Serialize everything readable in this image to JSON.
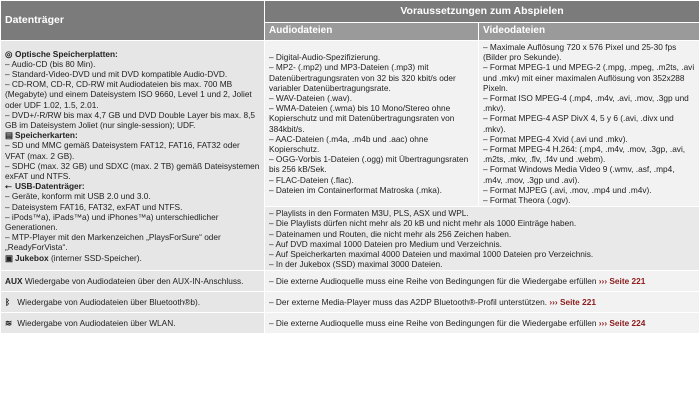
{
  "headers": {
    "col1": "Datenträger",
    "col23": "Voraussetzungen zum Abspielen",
    "audio": "Audiodateien",
    "video": "Videodateien"
  },
  "media": {
    "optical_title": "Optische Speicherplatten:",
    "optical_items": [
      "– Audio-CD (bis 80 Min).",
      "– Standard-Video-DVD und mit DVD kompatible Audio-DVD.",
      "– CD-ROM, CD-R, CD-RW mit Audiodateien bis max. 700 MB (Megabyte) und einem Dateisystem ISO 9660, Level 1 und 2, Joliet oder UDF 1.02, 1.5, 2.01.",
      "– DVD+/-R/RW bis max 4,7 GB und DVD Double Layer bis max. 8,5 GB im Dateisystem Joliet (nur single-session); UDF."
    ],
    "cards_title": "Speicherkarten:",
    "cards_items": [
      "– SD und MMC gemäß Dateisystem FAT12, FAT16, FAT32 oder VFAT (max. 2 GB).",
      "– SDHC (max. 32 GB) und SDXC (max. 2 TB) gemäß Dateisystemen exFAT und NTFS."
    ],
    "usb_title": "USB-Datenträger:",
    "usb_items": [
      "– Geräte, konform mit USB 2.0 und 3.0.",
      "– Dateisystem FAT16, FAT32, exFAT und NTFS.",
      "– iPods™a), iPads™a) und iPhones™a) unterschiedlicher Generationen.",
      "– MTP-Player mit den Markenzeichen „PlaysForSure“ oder „ReadyForVista“."
    ],
    "jukebox_title": "Jukebox",
    "jukebox_text": " (interner SSD-Speicher)."
  },
  "audio_items": [
    "– Digital-Audio-Spezifizierung.",
    "– MP2- (.mp2) und MP3-Dateien (.mp3) mit Datenübertragungsraten von 32 bis 320 kbit/s oder variabler Datenübertragungsrate.",
    "– WAV-Dateien (.wav).",
    "– WMA-Dateien (.wma) bis 10 Mono/Stereo ohne Kopierschutz und mit Datenübertragungsraten von 384kbit/s.",
    "– AAC-Dateien (.m4a, .m4b und .aac) ohne Kopierschutz.",
    "– OGG-Vorbis 1-Dateien (.ogg) mit Übertragungsraten bis 256 kB/Sek.",
    "– FLAC-Dateien (.flac).",
    "– Dateien im Containerformat Matroska (.mka)."
  ],
  "video_items": [
    "– Maximale Auflösung 720 x 576 Pixel und 25-30 fps (Bilder pro Sekunde).",
    "– Format MPEG-1 und MPEG-2 (.mpg, .mpeg, .m2ts, .avi und .mkv) mit einer maximalen Auflösung von 352x288 Pixeln.",
    "– Format ISO MPEG-4 (.mp4, .m4v, .avi, .mov, .3gp und .mkv).",
    "– Format MPEG-4 ASP DivX 4, 5 y 6 (.avi, .divx und .mkv).",
    "– Format MPEG-4 Xvid (.avi und .mkv).",
    "– Format MPEG-4 H.264: (.mp4, .m4v, .mov, .3gp, .avi, .m2ts, .mkv, .flv, .f4v und .webm).",
    "– Format Windows Media Video 9 (.wmv, .asf, .mp4, .m4v, .mov, .3gp und .avi).",
    "– Format MJPEG (.avi, .mov, .mp4 und .m4v).",
    "– Format Theora (.ogv)."
  ],
  "playlist_items": [
    "– Playlists in den Formaten M3U, PLS, ASX und WPL.",
    "– Die Playlists dürfen nicht mehr als 20 kB und nicht mehr als 1000 Einträge haben.",
    "– Dateinamen und Routen, die nicht mehr als 256 Zeichen haben.",
    "– Auf DVD maximal 1000 Dateien pro Medium und Verzeichnis.",
    "– Auf Speicherkarten maximal 4000 Dateien und maximal 1000 Dateien pro Verzeichnis.",
    "– In der Jukebox (SSD) maximal 3000 Dateien."
  ],
  "rows": {
    "aux_icon": "AUX",
    "aux_label": " Wiedergabe von Audiodateien über den AUX-IN-Anschluss.",
    "aux_text": "– Die externe Audioquelle muss eine Reihe von Bedingungen für die Wiedergabe erfüllen ",
    "aux_ref": "››› Seite 221",
    "bt_label": " Wiedergabe von Audiodateien über Bluetooth®b).",
    "bt_text": "– Der externe Media-Player muss das A2DP Bluetooth®-Profil unterstützen. ",
    "bt_ref": "››› Seite 221",
    "wlan_label": " Wiedergabe von Audiodateien über WLAN.",
    "wlan_text": "– Die externe Audioquelle muss eine Reihe von Bedingungen für die Wiedergabe erfüllen ",
    "wlan_ref": "››› Seite 224"
  }
}
